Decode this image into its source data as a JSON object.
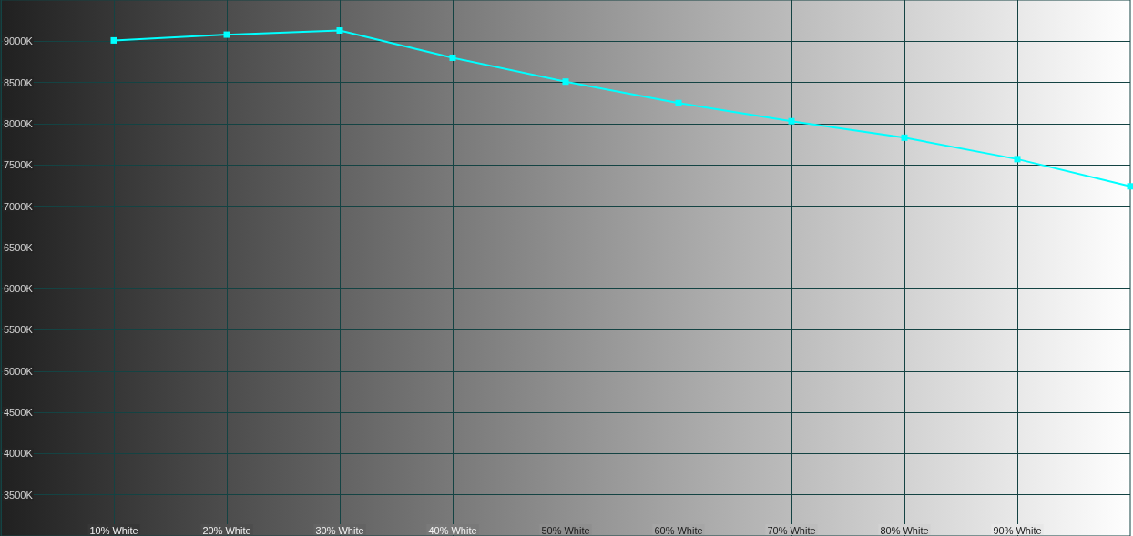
{
  "chart_data": {
    "type": "line",
    "x": [
      10,
      20,
      30,
      40,
      50,
      60,
      70,
      80,
      90,
      100
    ],
    "series": [
      {
        "color": "#00ffff",
        "values": [
          9010,
          9080,
          9130,
          8800,
          8510,
          8250,
          8030,
          7830,
          7570,
          7240
        ]
      }
    ],
    "xlim": [
      0,
      100
    ],
    "xticks": [
      {
        "value": 10,
        "label": "10% White"
      },
      {
        "value": 20,
        "label": "20% White"
      },
      {
        "value": 30,
        "label": "30% White"
      },
      {
        "value": 40,
        "label": "40% White"
      },
      {
        "value": 50,
        "label": "50% White"
      },
      {
        "value": 60,
        "label": "60% White"
      },
      {
        "value": 70,
        "label": "70% White"
      },
      {
        "value": 80,
        "label": "80% White"
      },
      {
        "value": 90,
        "label": "90% White"
      }
    ],
    "ylim": [
      3000,
      9500
    ],
    "yticks": [
      {
        "value": 3500,
        "label": "3500K"
      },
      {
        "value": 4000,
        "label": "4000K"
      },
      {
        "value": 4500,
        "label": "4500K"
      },
      {
        "value": 5000,
        "label": "5000K"
      },
      {
        "value": 5500,
        "label": "5500K"
      },
      {
        "value": 6000,
        "label": "6000K"
      },
      {
        "value": 6500,
        "label": "6500K"
      },
      {
        "value": 7000,
        "label": "7000K"
      },
      {
        "value": 7500,
        "label": "7500K"
      },
      {
        "value": 8000,
        "label": "8000K"
      },
      {
        "value": 8500,
        "label": "8500K"
      },
      {
        "value": 9000,
        "label": "9000K"
      }
    ],
    "grid": true,
    "marker": "square",
    "line_style": "solid",
    "ref_lines": [
      {
        "axis": "y",
        "value": 6500,
        "color": "#ffffff",
        "line_style": "dashed"
      }
    ]
  }
}
